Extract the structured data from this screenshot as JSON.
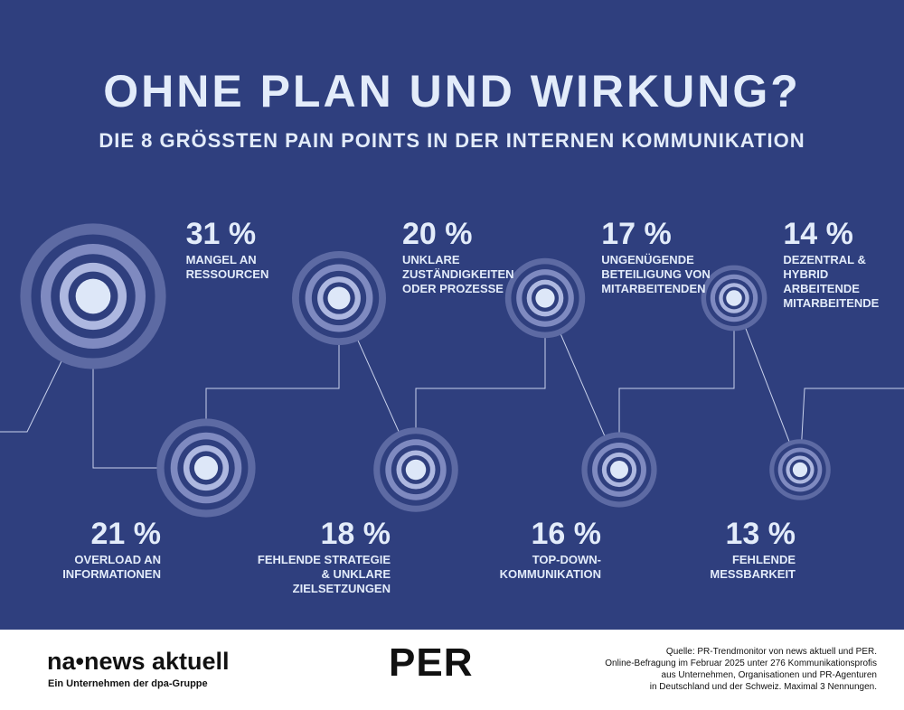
{
  "chart_data": {
    "type": "rings",
    "title": "OHNE PLAN UND WIRKUNG?",
    "subtitle": "DIE 8 GRÖSSTEN PAIN POINTS IN DER INTERNEN KOMMUNIKATION",
    "categories": [
      "MANGEL AN\nRESSOURCEN",
      "OVERLOAD AN\nINFORMATIONEN",
      "UNKLARE\nZUSTÄNDIGKEITEN\nODER PROZESSE",
      "FEHLENDE STRATEGIE\n& UNKLARE\nZIELSETZUNGEN",
      "UNGENÜGENDE\nBETEILIGUNG VON\nMITARBEITENDEN",
      "TOP-DOWN-\nKOMMUNIKATION",
      "DEZENTRAL & HYBRID\nARBEITENDE\nMITARBEITENDE",
      "FEHLENDE\nMESSBARKEIT"
    ],
    "values": [
      31,
      21,
      20,
      18,
      17,
      16,
      14,
      13
    ],
    "value_labels": [
      "31 %",
      "21 %",
      "20 %",
      "18 %",
      "17 %",
      "16 %",
      "14 %",
      "13 %"
    ],
    "color": "#dde7f8"
  },
  "footer": {
    "brand": "na•news aktuell",
    "brand_sub": "Ein Unternehmen der dpa-Gruppe",
    "partner": "PER",
    "source": "Quelle:  PR-Trendmonitor von news aktuell und PER.\nOnline-Befragung im Februar 2025 unter 276 Kommunikationsprofis\naus Unternehmen, Organisationen und PR-Agenturen\nin Deutschland und der Schweiz. Maximal 3 Nennungen."
  }
}
